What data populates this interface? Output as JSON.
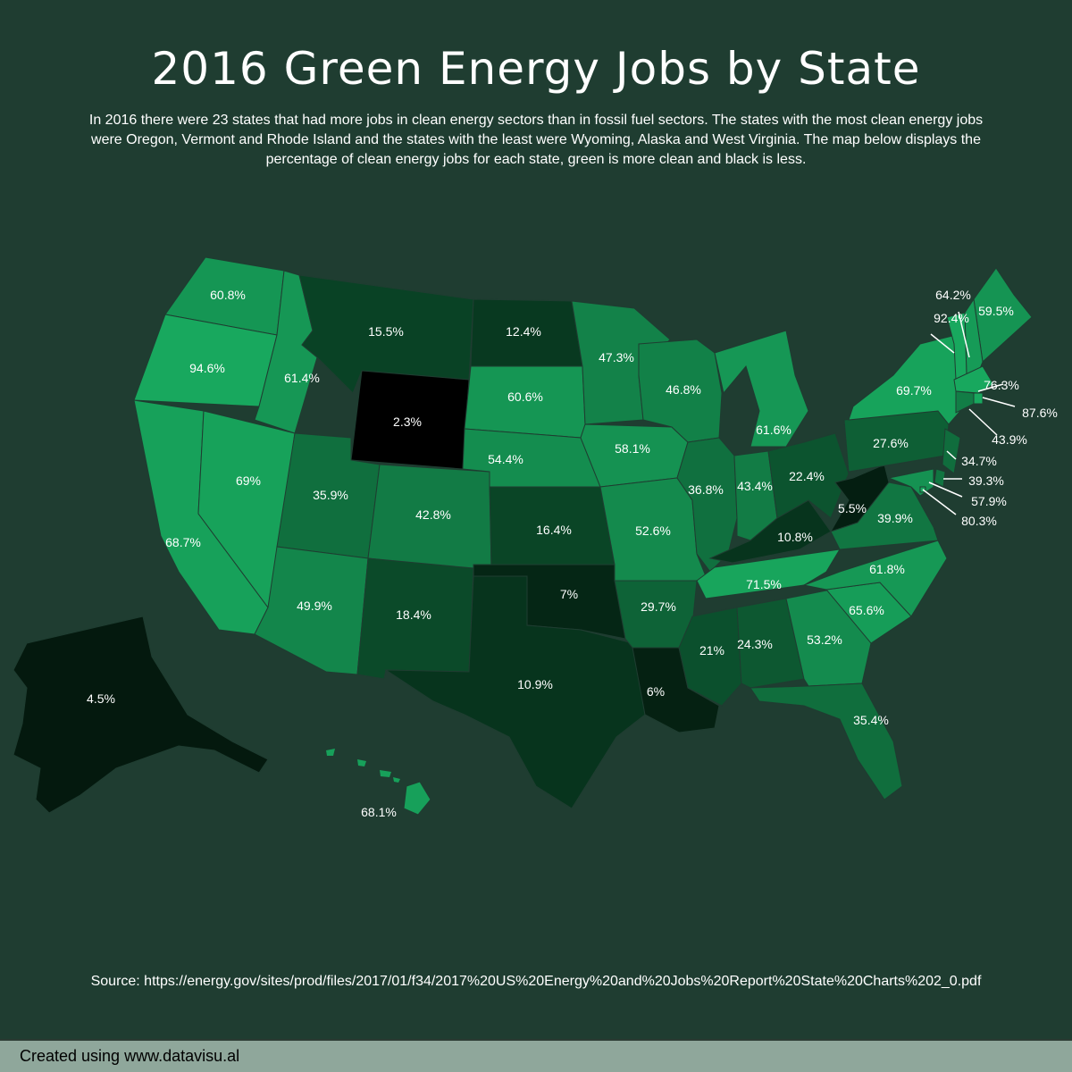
{
  "title": "2016 Green Energy Jobs by State",
  "subtitle": "In 2016 there were 23 states that had more jobs in clean energy sectors than in fossil fuel sectors. The states with the most clean energy jobs were Oregon, Vermont and Rhode Island and the states with the least were Wyoming, Alaska and West Virginia. The map below displays the percentage of clean energy jobs for each state, green is more clean and black is less.",
  "source": "Source: https://energy.gov/sites/prod/files/2017/01/f34/2017%20US%20Energy%20and%20Jobs%20Report%20State%20Charts%202_0.pdf",
  "footer": "Created using www.datavisu.al",
  "colors": {
    "background": "#1f3d31",
    "high": "#18a85e",
    "low": "#000000",
    "border": "#1f3d31"
  },
  "states": [
    {
      "code": "WA",
      "value": 60.8,
      "label": "60.8%"
    },
    {
      "code": "OR",
      "value": 94.6,
      "label": "94.6%"
    },
    {
      "code": "CA",
      "value": 68.7,
      "label": "68.7%"
    },
    {
      "code": "ID",
      "value": 61.4,
      "label": "61.4%"
    },
    {
      "code": "NV",
      "value": 69,
      "label": "69%"
    },
    {
      "code": "MT",
      "value": 15.5,
      "label": "15.5%"
    },
    {
      "code": "WY",
      "value": 2.3,
      "label": "2.3%"
    },
    {
      "code": "UT",
      "value": 35.9,
      "label": "35.9%"
    },
    {
      "code": "AZ",
      "value": 49.9,
      "label": "49.9%"
    },
    {
      "code": "CO",
      "value": 42.8,
      "label": "42.8%"
    },
    {
      "code": "NM",
      "value": 18.4,
      "label": "18.4%"
    },
    {
      "code": "ND",
      "value": 12.4,
      "label": "12.4%"
    },
    {
      "code": "SD",
      "value": 60.6,
      "label": "60.6%"
    },
    {
      "code": "NE",
      "value": 54.4,
      "label": "54.4%"
    },
    {
      "code": "KS",
      "value": 16.4,
      "label": "16.4%"
    },
    {
      "code": "OK",
      "value": 7,
      "label": "7%"
    },
    {
      "code": "TX",
      "value": 10.9,
      "label": "10.9%"
    },
    {
      "code": "MN",
      "value": 47.3,
      "label": "47.3%"
    },
    {
      "code": "IA",
      "value": 58.1,
      "label": "58.1%"
    },
    {
      "code": "MO",
      "value": 52.6,
      "label": "52.6%"
    },
    {
      "code": "AR",
      "value": 29.7,
      "label": "29.7%"
    },
    {
      "code": "LA",
      "value": 6,
      "label": "6%"
    },
    {
      "code": "WI",
      "value": 46.8,
      "label": "46.8%"
    },
    {
      "code": "IL",
      "value": 36.8,
      "label": "36.8%"
    },
    {
      "code": "MS",
      "value": 21,
      "label": "21%"
    },
    {
      "code": "MI",
      "value": 61.6,
      "label": "61.6%"
    },
    {
      "code": "IN",
      "value": 43.4,
      "label": "43.4%"
    },
    {
      "code": "KY",
      "value": 10.8,
      "label": "10.8%"
    },
    {
      "code": "TN",
      "value": 71.5,
      "label": "71.5%"
    },
    {
      "code": "AL",
      "value": 24.3,
      "label": "24.3%"
    },
    {
      "code": "OH",
      "value": 22.4,
      "label": "22.4%"
    },
    {
      "code": "WV",
      "value": 5.5,
      "label": "5.5%"
    },
    {
      "code": "GA",
      "value": 53.2,
      "label": "53.2%"
    },
    {
      "code": "FL",
      "value": 35.4,
      "label": "35.4%"
    },
    {
      "code": "SC",
      "value": 65.6,
      "label": "65.6%"
    },
    {
      "code": "NC",
      "value": 61.8,
      "label": "61.8%"
    },
    {
      "code": "VA",
      "value": 39.9,
      "label": "39.9%"
    },
    {
      "code": "PA",
      "value": 27.6,
      "label": "27.6%"
    },
    {
      "code": "NY",
      "value": 69.7,
      "label": "69.7%"
    },
    {
      "code": "ME",
      "value": 59.5,
      "label": "59.5%"
    },
    {
      "code": "NH",
      "value": 64.2,
      "label": "64.2%"
    },
    {
      "code": "VT",
      "value": 92.4,
      "label": "92.4%"
    },
    {
      "code": "MA",
      "value": 76.3,
      "label": "76.3%"
    },
    {
      "code": "RI",
      "value": 87.6,
      "label": "87.6%"
    },
    {
      "code": "CT",
      "value": 43.9,
      "label": "43.9%"
    },
    {
      "code": "NJ",
      "value": 34.7,
      "label": "34.7%"
    },
    {
      "code": "DE",
      "value": 39.3,
      "label": "39.3%"
    },
    {
      "code": "MD",
      "value": 57.9,
      "label": "57.9%"
    },
    {
      "code": "DC",
      "value": 80.3,
      "label": "80.3%"
    },
    {
      "code": "AK",
      "value": 4.5,
      "label": "4.5%"
    },
    {
      "code": "HI",
      "value": 68.1,
      "label": "68.1%"
    }
  ]
}
